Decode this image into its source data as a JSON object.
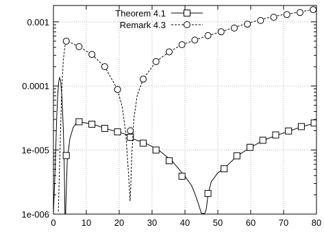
{
  "chart_data": {
    "type": "line",
    "title": "",
    "xlabel": "",
    "ylabel": "",
    "xlim": [
      0,
      80
    ],
    "ylim": [
      1e-06,
      0.0018
    ],
    "y_scale": "log",
    "grid": true,
    "legend_position": "top-right",
    "x_ticks": [
      {
        "value": 0,
        "label": "0"
      },
      {
        "value": 10,
        "label": "10"
      },
      {
        "value": 20,
        "label": "20"
      },
      {
        "value": 30,
        "label": "30"
      },
      {
        "value": 40,
        "label": "40"
      },
      {
        "value": 50,
        "label": "50"
      },
      {
        "value": 60,
        "label": "60"
      },
      {
        "value": 70,
        "label": "70"
      },
      {
        "value": 80,
        "label": "80"
      }
    ],
    "y_ticks": [
      {
        "value": 1e-06,
        "label": "1e-006"
      },
      {
        "value": 1e-05,
        "label": "1e-005"
      },
      {
        "value": 0.0001,
        "label": "0.0001"
      },
      {
        "value": 0.001,
        "label": "0.001"
      }
    ],
    "series": [
      {
        "name": "Theorem 4.1",
        "marker": "square",
        "dash": "solid",
        "color": "#000000",
        "curve": [
          [
            0,
            1.02e-06
          ],
          [
            0.3,
            2.5e-06
          ],
          [
            0.6,
            7e-06
          ],
          [
            1.0,
            3.2e-05
          ],
          [
            1.3,
            7.2e-05
          ],
          [
            1.6,
            0.000115
          ],
          [
            1.9,
            0.000135
          ],
          [
            2.2,
            0.00012
          ],
          [
            2.6,
            6.5e-05
          ],
          [
            3.0,
            2.2e-05
          ],
          [
            3.3,
            5.5e-06
          ],
          [
            3.5,
            1.02e-06
          ],
          [
            3.7,
            1.02e-06
          ],
          [
            3.9,
            2.2e-06
          ],
          [
            4.2,
            6.9e-06
          ],
          [
            5,
            1.5e-05
          ],
          [
            6,
            2.25e-05
          ],
          [
            7,
            2.65e-05
          ],
          [
            8,
            2.74e-05
          ],
          [
            12,
            2.53e-05
          ],
          [
            16,
            2.15e-05
          ],
          [
            20,
            1.9e-05
          ],
          [
            22,
            1.75e-05
          ],
          [
            24,
            1.5e-05
          ],
          [
            28,
            1.28e-05
          ],
          [
            32,
            1e-05
          ],
          [
            36,
            6.8e-06
          ],
          [
            40,
            3.9e-06
          ],
          [
            42,
            2.8e-06
          ],
          [
            43,
            2.1e-06
          ],
          [
            44,
            1.5e-06
          ],
          [
            45,
            1.03e-06
          ],
          [
            46,
            1.02e-06
          ],
          [
            46.5,
            1.2e-06
          ],
          [
            47,
            2e-06
          ],
          [
            48,
            3.2e-06
          ],
          [
            50,
            4.4e-06
          ],
          [
            52,
            5.2e-06
          ],
          [
            56,
            8.2e-06
          ],
          [
            60,
            1.1e-05
          ],
          [
            64,
            1.43e-05
          ],
          [
            68,
            1.7e-05
          ],
          [
            72,
            2e-05
          ],
          [
            76,
            2.35e-05
          ],
          [
            80,
            2.65e-05
          ]
        ],
        "x": [
          3.9,
          7.8,
          11.7,
          15.6,
          19.5,
          23.4,
          27.3,
          31.2,
          35.2,
          39.1,
          47.0,
          51.9,
          55.8,
          59.8,
          63.7,
          67.6,
          71.5,
          75.4,
          79.3
        ],
        "values": [
          8.2e-06,
          2.76e-05,
          2.53e-05,
          2.18e-05,
          1.92e-05,
          1.58e-05,
          1.28e-05,
          1e-05,
          6.8e-06,
          3.9e-06,
          2.1e-06,
          5.1e-06,
          8.1e-06,
          1.1e-05,
          1.42e-05,
          1.72e-05,
          1.98e-05,
          2.32e-05,
          2.64e-05
        ]
      },
      {
        "name": "Remark 4.3",
        "marker": "circle",
        "dash": "dashed",
        "color": "#000000",
        "curve": [
          [
            1.5,
            1.1e-06
          ],
          [
            2.0,
            1e-05
          ],
          [
            2.5,
            8e-05
          ],
          [
            3.0,
            0.00025
          ],
          [
            3.5,
            0.00042
          ],
          [
            3.9,
            0.00049
          ],
          [
            5,
            0.00048
          ],
          [
            7.8,
            0.00041
          ],
          [
            11.7,
            0.00031
          ],
          [
            15.6,
            0.0002
          ],
          [
            19.5,
            8.8e-05
          ],
          [
            21,
            4.5e-05
          ],
          [
            22,
            1.8e-05
          ],
          [
            22.7,
            5.5e-06
          ],
          [
            23.1,
            2.5e-06
          ],
          [
            23.3,
            1.6e-06
          ],
          [
            23.5,
            2.5e-06
          ],
          [
            23.8,
            8e-06
          ],
          [
            24.5,
            3.2e-05
          ],
          [
            25.5,
            7.2e-05
          ],
          [
            27.3,
            0.000128
          ],
          [
            31.2,
            0.00024
          ],
          [
            35.2,
            0.00034
          ],
          [
            39.1,
            0.00044
          ],
          [
            43.0,
            0.00052
          ],
          [
            47.0,
            0.00061
          ],
          [
            51.0,
            0.0007
          ],
          [
            55,
            0.00082
          ],
          [
            60,
            0.00098
          ],
          [
            65,
            0.00115
          ],
          [
            70,
            0.0013
          ],
          [
            75,
            0.00142
          ],
          [
            80,
            0.0016
          ]
        ],
        "x": [
          3.9,
          7.8,
          11.7,
          15.6,
          19.5,
          23.4,
          27.3,
          31.2,
          35.2,
          39.1,
          43.0,
          47.0,
          51.0,
          55.0,
          59.0,
          63.0,
          67.0,
          71.0,
          75.0,
          79.0
        ],
        "values": [
          0.0005,
          0.00041,
          0.00031,
          0.0002,
          8.8e-05,
          2e-05,
          0.000128,
          0.00024,
          0.00034,
          0.00044,
          0.00052,
          0.00061,
          0.0007,
          0.0008,
          0.00092,
          0.00105,
          0.00118,
          0.0013,
          0.0014,
          0.00155
        ]
      }
    ]
  }
}
